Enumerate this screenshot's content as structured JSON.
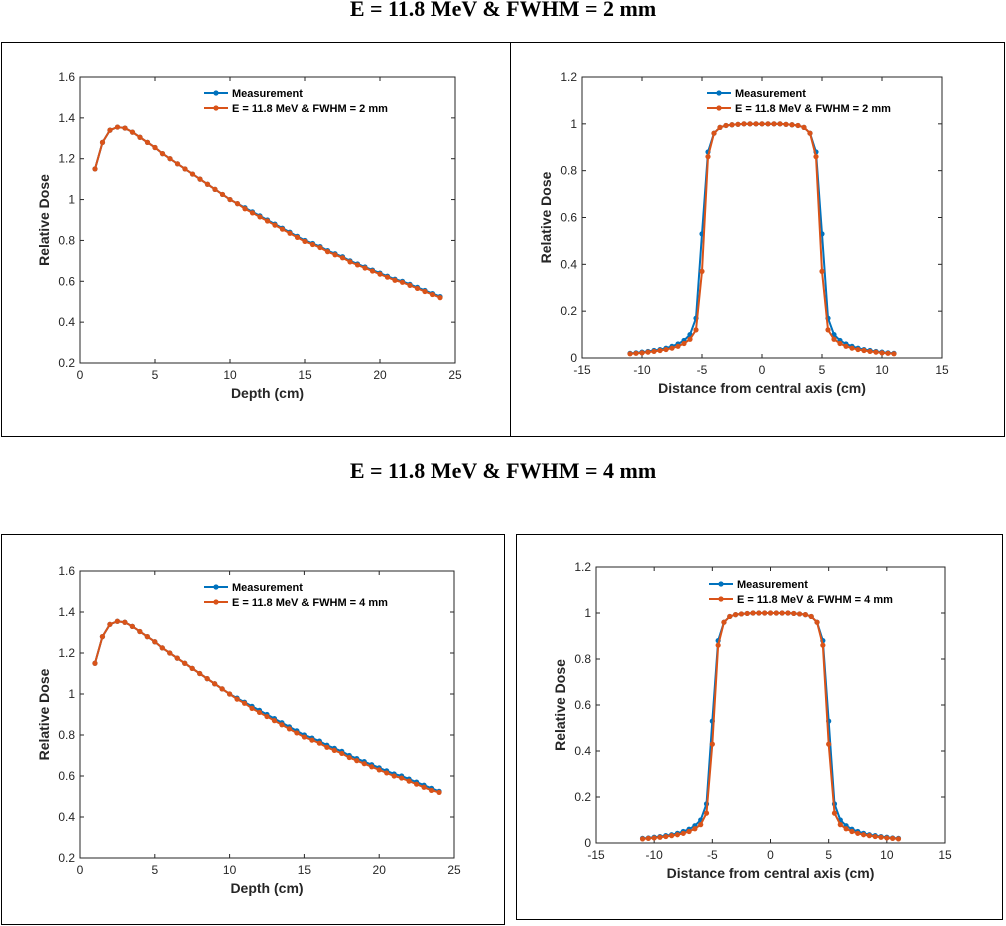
{
  "titles": {
    "row1": "E = 11.8 MeV & FWHM = 2 mm",
    "row2": "E = 11.8 MeV & FWHM = 4 mm"
  },
  "colors": {
    "measurement": "#0072BD",
    "simulation": "#D95319"
  },
  "chart_data": [
    {
      "type": "line",
      "xlabel": "Depth (cm)",
      "ylabel": "Relative Dose",
      "xlim": [
        0,
        25
      ],
      "ylim": [
        0.2,
        1.6
      ],
      "xticks": [
        0,
        5,
        10,
        15,
        20,
        25
      ],
      "yticks": [
        0.2,
        0.4,
        0.6,
        0.8,
        1,
        1.2,
        1.4,
        1.6
      ],
      "legend": "top-center",
      "x": [
        1,
        1.5,
        2,
        2.5,
        3,
        3.5,
        4,
        4.5,
        5,
        5.5,
        6,
        6.5,
        7,
        7.5,
        8,
        8.5,
        9,
        9.5,
        10,
        10.5,
        11,
        11.5,
        12,
        12.5,
        13,
        13.5,
        14,
        14.5,
        15,
        15.5,
        16,
        16.5,
        17,
        17.5,
        18,
        18.5,
        19,
        19.5,
        20,
        20.5,
        21,
        21.5,
        22,
        22.5,
        23,
        23.5,
        24
      ],
      "series": [
        {
          "name": "Measurement",
          "values": [
            1.15,
            1.28,
            1.34,
            1.355,
            1.35,
            1.33,
            1.305,
            1.28,
            1.255,
            1.225,
            1.2,
            1.175,
            1.15,
            1.125,
            1.1,
            1.075,
            1.05,
            1.025,
            1.0,
            0.98,
            0.96,
            0.94,
            0.92,
            0.9,
            0.88,
            0.86,
            0.84,
            0.82,
            0.8,
            0.785,
            0.77,
            0.75,
            0.735,
            0.72,
            0.7,
            0.685,
            0.67,
            0.655,
            0.64,
            0.625,
            0.61,
            0.6,
            0.585,
            0.57,
            0.555,
            0.54,
            0.525
          ]
        },
        {
          "name": "E = 11.8 MeV  &  FWHM = 2 mm",
          "values": [
            1.15,
            1.28,
            1.34,
            1.355,
            1.35,
            1.33,
            1.305,
            1.28,
            1.255,
            1.225,
            1.2,
            1.175,
            1.15,
            1.125,
            1.1,
            1.075,
            1.05,
            1.025,
            1.0,
            0.98,
            0.955,
            0.935,
            0.915,
            0.895,
            0.875,
            0.855,
            0.835,
            0.815,
            0.795,
            0.78,
            0.765,
            0.745,
            0.73,
            0.715,
            0.695,
            0.68,
            0.665,
            0.65,
            0.635,
            0.62,
            0.605,
            0.595,
            0.58,
            0.565,
            0.55,
            0.535,
            0.52
          ]
        }
      ]
    },
    {
      "type": "line",
      "xlabel": "Distance from central axis (cm)",
      "ylabel": "Relative Dose",
      "xlim": [
        -15,
        15
      ],
      "ylim": [
        0,
        1.2
      ],
      "xticks": [
        -15,
        -10,
        -5,
        0,
        5,
        10,
        15
      ],
      "yticks": [
        0,
        0.2,
        0.4,
        0.6,
        0.8,
        1,
        1.2
      ],
      "legend": "top-center",
      "x": [
        -11,
        -10.5,
        -10,
        -9.5,
        -9,
        -8.5,
        -8,
        -7.5,
        -7,
        -6.5,
        -6,
        -5.5,
        -5,
        -4.5,
        -4,
        -3.5,
        -3,
        -2.5,
        -2,
        -1.5,
        -1,
        -0.5,
        0,
        0.5,
        1,
        1.5,
        2,
        2.5,
        3,
        3.5,
        4,
        4.5,
        5,
        5.5,
        6,
        6.5,
        7,
        7.5,
        8,
        8.5,
        9,
        9.5,
        10,
        10.5,
        11
      ],
      "series": [
        {
          "name": "Measurement",
          "values": [
            0.02,
            0.022,
            0.025,
            0.028,
            0.032,
            0.036,
            0.042,
            0.05,
            0.06,
            0.075,
            0.1,
            0.17,
            0.53,
            0.88,
            0.96,
            0.985,
            0.993,
            0.996,
            0.998,
            1.0,
            1.0,
            1.0,
            1.0,
            1.0,
            1.0,
            1.0,
            0.998,
            0.996,
            0.993,
            0.985,
            0.96,
            0.88,
            0.53,
            0.17,
            0.1,
            0.075,
            0.06,
            0.05,
            0.042,
            0.036,
            0.032,
            0.028,
            0.025,
            0.022,
            0.02
          ]
        },
        {
          "name": "E = 11.8 MeV  &  FWHM = 2 mm",
          "values": [
            0.018,
            0.02,
            0.022,
            0.025,
            0.028,
            0.032,
            0.036,
            0.042,
            0.05,
            0.062,
            0.08,
            0.12,
            0.37,
            0.86,
            0.96,
            0.985,
            0.993,
            0.996,
            0.998,
            1.0,
            1.0,
            1.0,
            1.0,
            1.0,
            1.0,
            1.0,
            0.998,
            0.996,
            0.993,
            0.985,
            0.96,
            0.86,
            0.37,
            0.12,
            0.08,
            0.062,
            0.05,
            0.042,
            0.036,
            0.032,
            0.028,
            0.025,
            0.022,
            0.02,
            0.018
          ]
        }
      ]
    },
    {
      "type": "line",
      "xlabel": "Depth  (cm)",
      "ylabel": "Relative Dose",
      "xlim": [
        0,
        25
      ],
      "ylim": [
        0.2,
        1.6
      ],
      "xticks": [
        0,
        5,
        10,
        15,
        20,
        25
      ],
      "yticks": [
        0.2,
        0.4,
        0.6,
        0.8,
        1,
        1.2,
        1.4,
        1.6
      ],
      "legend": "top-center",
      "x": [
        1,
        1.5,
        2,
        2.5,
        3,
        3.5,
        4,
        4.5,
        5,
        5.5,
        6,
        6.5,
        7,
        7.5,
        8,
        8.5,
        9,
        9.5,
        10,
        10.5,
        11,
        11.5,
        12,
        12.5,
        13,
        13.5,
        14,
        14.5,
        15,
        15.5,
        16,
        16.5,
        17,
        17.5,
        18,
        18.5,
        19,
        19.5,
        20,
        20.5,
        21,
        21.5,
        22,
        22.5,
        23,
        23.5,
        24
      ],
      "series": [
        {
          "name": "Measurement",
          "values": [
            1.15,
            1.28,
            1.34,
            1.355,
            1.35,
            1.33,
            1.305,
            1.28,
            1.255,
            1.225,
            1.2,
            1.175,
            1.15,
            1.125,
            1.1,
            1.075,
            1.05,
            1.025,
            1.0,
            0.98,
            0.96,
            0.94,
            0.92,
            0.9,
            0.88,
            0.86,
            0.84,
            0.82,
            0.8,
            0.785,
            0.77,
            0.75,
            0.735,
            0.72,
            0.7,
            0.685,
            0.67,
            0.655,
            0.64,
            0.625,
            0.61,
            0.6,
            0.585,
            0.57,
            0.555,
            0.54,
            0.525
          ]
        },
        {
          "name": "E = 11.8 MeV  &  FWHM = 4 mm",
          "values": [
            1.15,
            1.28,
            1.34,
            1.355,
            1.35,
            1.33,
            1.305,
            1.28,
            1.255,
            1.225,
            1.2,
            1.175,
            1.15,
            1.125,
            1.1,
            1.075,
            1.05,
            1.025,
            1.0,
            0.975,
            0.955,
            0.93,
            0.91,
            0.89,
            0.87,
            0.85,
            0.83,
            0.81,
            0.79,
            0.775,
            0.76,
            0.74,
            0.725,
            0.71,
            0.69,
            0.675,
            0.66,
            0.645,
            0.63,
            0.615,
            0.6,
            0.59,
            0.575,
            0.56,
            0.545,
            0.53,
            0.52
          ]
        }
      ]
    },
    {
      "type": "line",
      "xlabel": "Distance from central axis  (cm)",
      "ylabel": "Relative Dose",
      "xlim": [
        -15,
        15
      ],
      "ylim": [
        0,
        1.2
      ],
      "xticks": [
        -15,
        -10,
        -5,
        0,
        5,
        10,
        15
      ],
      "yticks": [
        0,
        0.2,
        0.4,
        0.6,
        0.8,
        1,
        1.2
      ],
      "legend": "top-center",
      "x": [
        -11,
        -10.5,
        -10,
        -9.5,
        -9,
        -8.5,
        -8,
        -7.5,
        -7,
        -6.5,
        -6,
        -5.5,
        -5,
        -4.5,
        -4,
        -3.5,
        -3,
        -2.5,
        -2,
        -1.5,
        -1,
        -0.5,
        0,
        0.5,
        1,
        1.5,
        2,
        2.5,
        3,
        3.5,
        4,
        4.5,
        5,
        5.5,
        6,
        6.5,
        7,
        7.5,
        8,
        8.5,
        9,
        9.5,
        10,
        10.5,
        11
      ],
      "series": [
        {
          "name": "Measurement",
          "values": [
            0.02,
            0.022,
            0.025,
            0.028,
            0.032,
            0.036,
            0.042,
            0.05,
            0.06,
            0.075,
            0.1,
            0.17,
            0.53,
            0.88,
            0.96,
            0.985,
            0.993,
            0.996,
            0.998,
            1.0,
            1.0,
            1.0,
            1.0,
            1.0,
            1.0,
            1.0,
            0.998,
            0.996,
            0.993,
            0.985,
            0.96,
            0.88,
            0.53,
            0.17,
            0.1,
            0.075,
            0.06,
            0.05,
            0.042,
            0.036,
            0.032,
            0.028,
            0.025,
            0.022,
            0.02
          ]
        },
        {
          "name": "E = 11.8 MeV  &  FWHM = 4 mm",
          "values": [
            0.018,
            0.02,
            0.022,
            0.025,
            0.028,
            0.032,
            0.036,
            0.042,
            0.05,
            0.062,
            0.08,
            0.13,
            0.43,
            0.86,
            0.96,
            0.985,
            0.993,
            0.996,
            0.998,
            1.0,
            1.0,
            1.0,
            1.0,
            1.0,
            1.0,
            1.0,
            0.998,
            0.996,
            0.993,
            0.985,
            0.96,
            0.86,
            0.43,
            0.13,
            0.08,
            0.062,
            0.05,
            0.042,
            0.036,
            0.032,
            0.028,
            0.025,
            0.022,
            0.02,
            0.018
          ]
        }
      ]
    }
  ]
}
